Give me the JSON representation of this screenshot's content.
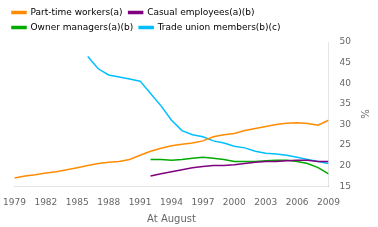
{
  "chart_data": {
    "type": "line",
    "x_label": "At August",
    "y_label": "%",
    "x": [
      1979,
      1980,
      1981,
      1982,
      1983,
      1984,
      1985,
      1986,
      1987,
      1988,
      1989,
      1990,
      1991,
      1992,
      1993,
      1994,
      1995,
      1996,
      1997,
      1998,
      1999,
      2000,
      2001,
      2002,
      2003,
      2004,
      2005,
      2006,
      2007,
      2008,
      2009
    ],
    "series": [
      {
        "name": "Part-time workers(a)",
        "color": "#FF8C00",
        "values": [
          17.0,
          17.5,
          17.8,
          18.2,
          18.5,
          19.0,
          19.5,
          20.0,
          20.5,
          20.8,
          21.0,
          21.5,
          22.5,
          23.5,
          24.2,
          24.8,
          25.2,
          25.5,
          26.0,
          27.0,
          27.5,
          27.8,
          28.5,
          29.0,
          29.5,
          30.0,
          30.3,
          30.4,
          30.2,
          29.8,
          31.0
        ]
      },
      {
        "name": "Casual employees(a)(b)",
        "color": "#800080",
        "values": [
          null,
          null,
          null,
          null,
          null,
          null,
          null,
          null,
          null,
          null,
          null,
          null,
          null,
          17.5,
          18.0,
          18.5,
          19.0,
          19.5,
          19.8,
          20.0,
          20.0,
          20.2,
          20.5,
          20.8,
          21.0,
          21.0,
          21.2,
          21.3,
          21.3,
          21.0,
          21.0
        ]
      },
      {
        "name": "Owner managers(a)(b)",
        "color": "#00AA00",
        "values": [
          null,
          null,
          null,
          null,
          null,
          null,
          null,
          null,
          null,
          null,
          null,
          null,
          null,
          21.5,
          21.5,
          21.3,
          21.5,
          21.8,
          22.0,
          21.8,
          21.5,
          21.0,
          21.0,
          21.0,
          21.2,
          21.3,
          21.3,
          21.0,
          20.5,
          19.5,
          18.0
        ]
      },
      {
        "name": "Trade union members(b)(c)",
        "color": "#00BFFF",
        "values": [
          null,
          null,
          null,
          null,
          null,
          null,
          null,
          46.5,
          43.5,
          42.0,
          41.5,
          41.0,
          40.5,
          37.5,
          34.5,
          31.0,
          28.5,
          27.5,
          27.0,
          26.0,
          25.5,
          24.7,
          24.3,
          23.5,
          23.0,
          22.8,
          22.5,
          22.0,
          21.5,
          21.0,
          20.5
        ]
      }
    ],
    "xlim": [
      1979,
      2009
    ],
    "xticks": [
      1979,
      1982,
      1985,
      1988,
      1991,
      1994,
      1997,
      2000,
      2003,
      2006,
      2009
    ],
    "ylim": [
      15,
      50
    ],
    "yticks": [
      15,
      20,
      25,
      30,
      35,
      40,
      45,
      50
    ],
    "grid": false,
    "legend": "upper left"
  }
}
